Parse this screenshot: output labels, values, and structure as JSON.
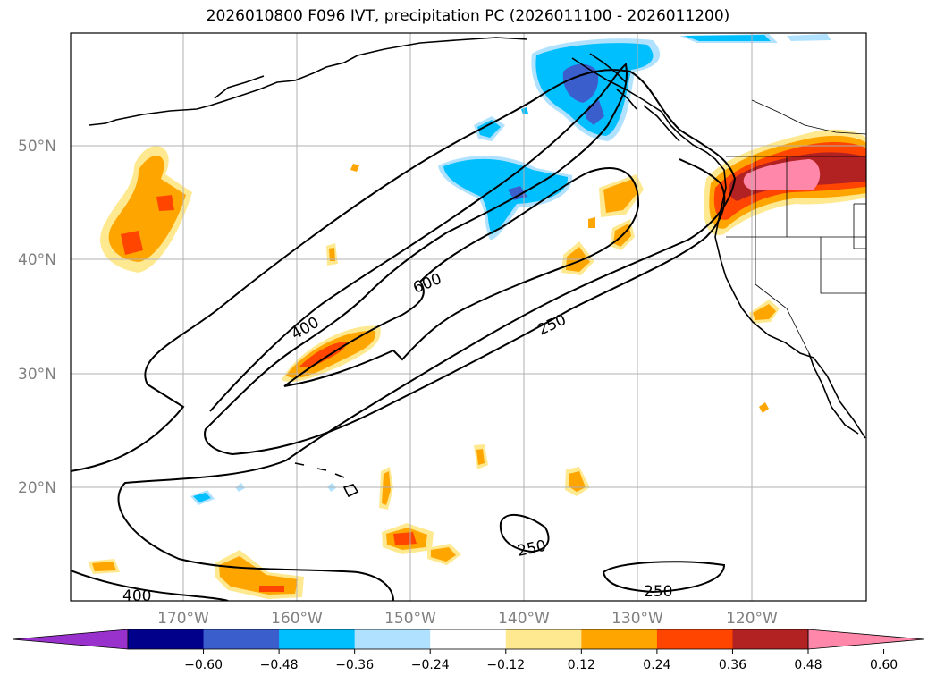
{
  "title": "2026010800 F096 IVT, precipitation PC (2026011100 - 2026011200)",
  "map": {
    "lat_labels": [
      "50°N",
      "40°N",
      "30°N",
      "20°N"
    ],
    "lon_labels": [
      "170°W",
      "160°W",
      "150°W",
      "140°W",
      "130°W",
      "120°W"
    ],
    "ivt_contour_labels": [
      "400",
      "600",
      "250",
      "250",
      "250",
      "400"
    ],
    "colors": {
      "land_line": "#000000",
      "grid": "#b0b0b0",
      "contour": "#000000"
    }
  },
  "colorbar": {
    "ticks": [
      "−0.60",
      "−0.48",
      "−0.36",
      "−0.24",
      "−0.12",
      "0.12",
      "0.24",
      "0.36",
      "0.48",
      "0.60"
    ],
    "colors": [
      "#9932cc",
      "#00008b",
      "#3a5fcd",
      "#00bfff",
      "#b0e2ff",
      "#ffffff",
      "#ffe990",
      "#ffa500",
      "#ff4500",
      "#b22222",
      "#ff88aa"
    ]
  }
}
